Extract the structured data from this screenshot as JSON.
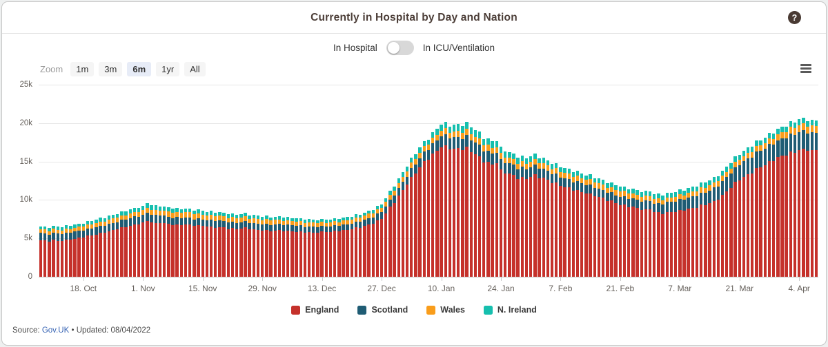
{
  "header": {
    "title": "Currently in Hospital by Day and Nation",
    "help_icon": "?"
  },
  "toggle": {
    "left_label": "In Hospital",
    "right_label": "In ICU/Ventilation",
    "state": "left"
  },
  "toolbar": {
    "zoom_label": "Zoom",
    "options": [
      "1m",
      "3m",
      "6m",
      "1yr",
      "All"
    ],
    "selected": "6m"
  },
  "footer": {
    "source_label": "Source:",
    "source_link": "Gov.UK",
    "updated_text": "• Updated: 08/04/2022"
  },
  "chart_data": {
    "type": "bar",
    "stacked": true,
    "title": "Currently in Hospital by Day and Nation",
    "x_axis": "date (daily bars)",
    "start_date": "2021-10-08",
    "end_date": "2022-04-08",
    "days": 183,
    "ylim": [
      0,
      25000
    ],
    "grid": true,
    "legend_position": "bottom",
    "daily_variation": 0.013,
    "yticks": [
      {
        "value": 0,
        "label": "0"
      },
      {
        "value": 5000,
        "label": "5k"
      },
      {
        "value": 10000,
        "label": "10k"
      },
      {
        "value": 15000,
        "label": "15k"
      },
      {
        "value": 20000,
        "label": "20k"
      },
      {
        "value": 25000,
        "label": "25k"
      }
    ],
    "xticks": [
      {
        "day": 10,
        "label": "18. Oct"
      },
      {
        "day": 24,
        "label": "1. Nov"
      },
      {
        "day": 38,
        "label": "15. Nov"
      },
      {
        "day": 52,
        "label": "29. Nov"
      },
      {
        "day": 66,
        "label": "13. Dec"
      },
      {
        "day": 80,
        "label": "27. Dec"
      },
      {
        "day": 94,
        "label": "10. Jan"
      },
      {
        "day": 108,
        "label": "24. Jan"
      },
      {
        "day": 122,
        "label": "7. Feb"
      },
      {
        "day": 136,
        "label": "21. Feb"
      },
      {
        "day": 150,
        "label": "7. Mar"
      },
      {
        "day": 164,
        "label": "21. Mar"
      },
      {
        "day": 178,
        "label": "4. Apr"
      }
    ],
    "series": [
      {
        "name": "England",
        "color": "#c5312b",
        "keypoints": [
          [
            0,
            4750
          ],
          [
            2,
            4600
          ],
          [
            3,
            4750
          ],
          [
            5,
            4650
          ],
          [
            6,
            4800
          ],
          [
            8,
            4950
          ],
          [
            10,
            5200
          ],
          [
            12,
            5400
          ],
          [
            14,
            5650
          ],
          [
            16,
            5900
          ],
          [
            18,
            6200
          ],
          [
            20,
            6500
          ],
          [
            22,
            6800
          ],
          [
            24,
            7000
          ],
          [
            25,
            7300
          ],
          [
            26,
            7100
          ],
          [
            27,
            6950
          ],
          [
            28,
            7050
          ],
          [
            30,
            6850
          ],
          [
            32,
            6750
          ],
          [
            34,
            6850
          ],
          [
            36,
            6700
          ],
          [
            38,
            6600
          ],
          [
            40,
            6500
          ],
          [
            42,
            6450
          ],
          [
            44,
            6300
          ],
          [
            46,
            6250
          ],
          [
            48,
            6350
          ],
          [
            50,
            6150
          ],
          [
            52,
            6050
          ],
          [
            54,
            6000
          ],
          [
            56,
            6050
          ],
          [
            58,
            5950
          ],
          [
            60,
            5900
          ],
          [
            62,
            5800
          ],
          [
            64,
            5750
          ],
          [
            66,
            5800
          ],
          [
            68,
            5850
          ],
          [
            70,
            5950
          ],
          [
            72,
            6100
          ],
          [
            74,
            6350
          ],
          [
            76,
            6600
          ],
          [
            78,
            7000
          ],
          [
            80,
            7600
          ],
          [
            82,
            9000
          ],
          [
            84,
            10500
          ],
          [
            86,
            12100
          ],
          [
            88,
            13600
          ],
          [
            90,
            14900
          ],
          [
            92,
            15900
          ],
          [
            94,
            17000
          ],
          [
            95,
            16900
          ],
          [
            97,
            16600
          ],
          [
            99,
            16650
          ],
          [
            100,
            16700
          ],
          [
            102,
            16000
          ],
          [
            104,
            15100
          ],
          [
            106,
            14600
          ],
          [
            107,
            14900
          ],
          [
            108,
            13800
          ],
          [
            110,
            13400
          ],
          [
            112,
            12900
          ],
          [
            114,
            12800
          ],
          [
            115,
            13100
          ],
          [
            116,
            13200
          ],
          [
            118,
            12800
          ],
          [
            120,
            12300
          ],
          [
            122,
            11900
          ],
          [
            124,
            11500
          ],
          [
            126,
            11200
          ],
          [
            128,
            10900
          ],
          [
            130,
            10600
          ],
          [
            132,
            10200
          ],
          [
            134,
            9800
          ],
          [
            136,
            9400
          ],
          [
            138,
            9200
          ],
          [
            140,
            8900
          ],
          [
            142,
            8700
          ],
          [
            143,
            8850
          ],
          [
            144,
            8400
          ],
          [
            146,
            8300
          ],
          [
            148,
            8450
          ],
          [
            150,
            8600
          ],
          [
            152,
            8800
          ],
          [
            154,
            9100
          ],
          [
            156,
            9400
          ],
          [
            158,
            9800
          ],
          [
            160,
            10600
          ],
          [
            162,
            11700
          ],
          [
            164,
            12700
          ],
          [
            166,
            13300
          ],
          [
            168,
            14000
          ],
          [
            170,
            14600
          ],
          [
            172,
            15200
          ],
          [
            174,
            15700
          ],
          [
            176,
            16100
          ],
          [
            178,
            16500
          ],
          [
            180,
            16600
          ],
          [
            181,
            16300
          ],
          [
            182,
            16500
          ]
        ]
      },
      {
        "name": "Scotland",
        "color": "#1f5c74",
        "keypoints": [
          [
            0,
            950
          ],
          [
            6,
            900
          ],
          [
            10,
            900
          ],
          [
            14,
            950
          ],
          [
            20,
            1000
          ],
          [
            24,
            1000
          ],
          [
            25,
            1050
          ],
          [
            30,
            950
          ],
          [
            38,
            850
          ],
          [
            45,
            820
          ],
          [
            52,
            800
          ],
          [
            60,
            780
          ],
          [
            66,
            750
          ],
          [
            72,
            750
          ],
          [
            78,
            800
          ],
          [
            80,
            850
          ],
          [
            84,
            1000
          ],
          [
            88,
            1150
          ],
          [
            92,
            1300
          ],
          [
            94,
            1400
          ],
          [
            98,
            1500
          ],
          [
            100,
            1550
          ],
          [
            104,
            1450
          ],
          [
            108,
            1350
          ],
          [
            112,
            1300
          ],
          [
            116,
            1250
          ],
          [
            122,
            1150
          ],
          [
            128,
            1100
          ],
          [
            132,
            1050
          ],
          [
            136,
            1050
          ],
          [
            140,
            1100
          ],
          [
            144,
            1100
          ],
          [
            148,
            1300
          ],
          [
            150,
            1400
          ],
          [
            154,
            1550
          ],
          [
            158,
            1700
          ],
          [
            162,
            1850
          ],
          [
            164,
            1950
          ],
          [
            168,
            2100
          ],
          [
            172,
            2200
          ],
          [
            176,
            2300
          ],
          [
            178,
            2350
          ],
          [
            182,
            2300
          ]
        ]
      },
      {
        "name": "Wales",
        "color": "#f99d1b",
        "keypoints": [
          [
            0,
            500
          ],
          [
            10,
            500
          ],
          [
            16,
            550
          ],
          [
            24,
            620
          ],
          [
            25,
            650
          ],
          [
            32,
            660
          ],
          [
            38,
            650
          ],
          [
            46,
            620
          ],
          [
            52,
            600
          ],
          [
            60,
            550
          ],
          [
            66,
            500
          ],
          [
            74,
            520
          ],
          [
            80,
            600
          ],
          [
            84,
            650
          ],
          [
            88,
            700
          ],
          [
            94,
            750
          ],
          [
            100,
            800
          ],
          [
            108,
            750
          ],
          [
            116,
            700
          ],
          [
            124,
            700
          ],
          [
            132,
            700
          ],
          [
            136,
            680
          ],
          [
            144,
            620
          ],
          [
            150,
            600
          ],
          [
            158,
            650
          ],
          [
            164,
            700
          ],
          [
            170,
            750
          ],
          [
            176,
            850
          ],
          [
            178,
            880
          ],
          [
            182,
            900
          ]
        ]
      },
      {
        "name": "N. Ireland",
        "color": "#16bfae",
        "keypoints": [
          [
            0,
            380
          ],
          [
            6,
            420
          ],
          [
            10,
            420
          ],
          [
            16,
            480
          ],
          [
            24,
            550
          ],
          [
            25,
            600
          ],
          [
            32,
            520
          ],
          [
            38,
            500
          ],
          [
            46,
            450
          ],
          [
            52,
            420
          ],
          [
            60,
            400
          ],
          [
            66,
            380
          ],
          [
            74,
            400
          ],
          [
            80,
            450
          ],
          [
            84,
            550
          ],
          [
            88,
            650
          ],
          [
            92,
            720
          ],
          [
            94,
            780
          ],
          [
            98,
            850
          ],
          [
            102,
            900
          ],
          [
            108,
            800
          ],
          [
            116,
            700
          ],
          [
            122,
            650
          ],
          [
            130,
            600
          ],
          [
            136,
            620
          ],
          [
            144,
            600
          ],
          [
            150,
            620
          ],
          [
            158,
            680
          ],
          [
            164,
            650
          ],
          [
            170,
            700
          ],
          [
            176,
            720
          ],
          [
            178,
            780
          ],
          [
            182,
            700
          ]
        ]
      }
    ]
  }
}
